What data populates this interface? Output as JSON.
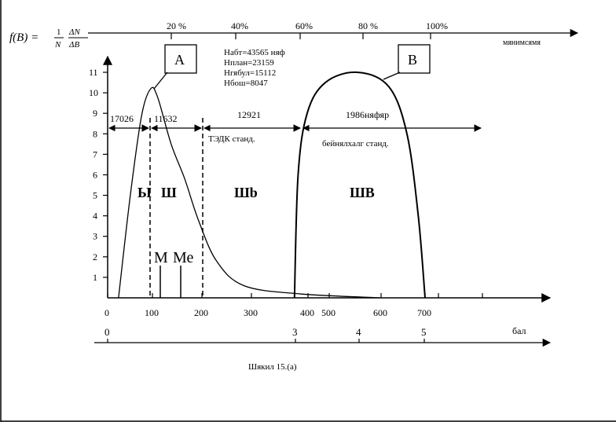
{
  "formula": {
    "lhs": "f(B) =",
    "num1": "1",
    "den1": "N",
    "num2": "ΔN",
    "den2": "ΔB"
  },
  "top_axis": {
    "label": "мянимсямя",
    "ticks": [
      "20 %",
      "40%",
      "60%",
      "80 %",
      "100%"
    ]
  },
  "y_axis": {
    "ticks": [
      "1",
      "2",
      "3",
      "4",
      "5",
      "6",
      "7",
      "8",
      "9",
      "10",
      "11"
    ]
  },
  "x_axis": {
    "ticks": [
      "0",
      "100",
      "200",
      "300",
      "400",
      "500",
      "600",
      "700"
    ]
  },
  "score_axis": {
    "label": "бал",
    "ticks": [
      "0",
      "3",
      "4",
      "5"
    ]
  },
  "callouts": {
    "a": "A",
    "b": "B"
  },
  "stats": [
    "Набт=43565 няф",
    "Нплан=23159",
    "Нгябул=15112",
    "Нбош=8047"
  ],
  "segments": {
    "s1": "17026",
    "s2": "11632",
    "s3": "12921",
    "s4": "1986няфяр"
  },
  "standards": {
    "tedk": "ТЭДК станд.",
    "intl": "бейнялхалг станд."
  },
  "zones": {
    "z1": "Ы",
    "z2": "Ш",
    "z3": "Шb",
    "z4": "ШВ"
  },
  "markers": {
    "mode": "М",
    "median": "Ме"
  },
  "caption": "Шякил 15.(а)",
  "curve_data": {
    "curve_a": [
      [
        24,
        0
      ],
      [
        50,
        5
      ],
      [
        75,
        8.9
      ],
      [
        95,
        10.2
      ],
      [
        110,
        9.8
      ],
      [
        140,
        7.5
      ],
      [
        170,
        5.8
      ],
      [
        200,
        3.8
      ],
      [
        240,
        1.8
      ],
      [
        300,
        0.6
      ],
      [
        420,
        0.2
      ],
      [
        600,
        0
      ]
    ],
    "curve_b": [
      [
        412,
        0
      ],
      [
        420,
        6
      ],
      [
        440,
        9
      ],
      [
        480,
        10.5
      ],
      [
        550,
        11
      ],
      [
        620,
        10.3
      ],
      [
        660,
        8
      ],
      [
        685,
        4
      ],
      [
        700,
        0
      ]
    ]
  }
}
